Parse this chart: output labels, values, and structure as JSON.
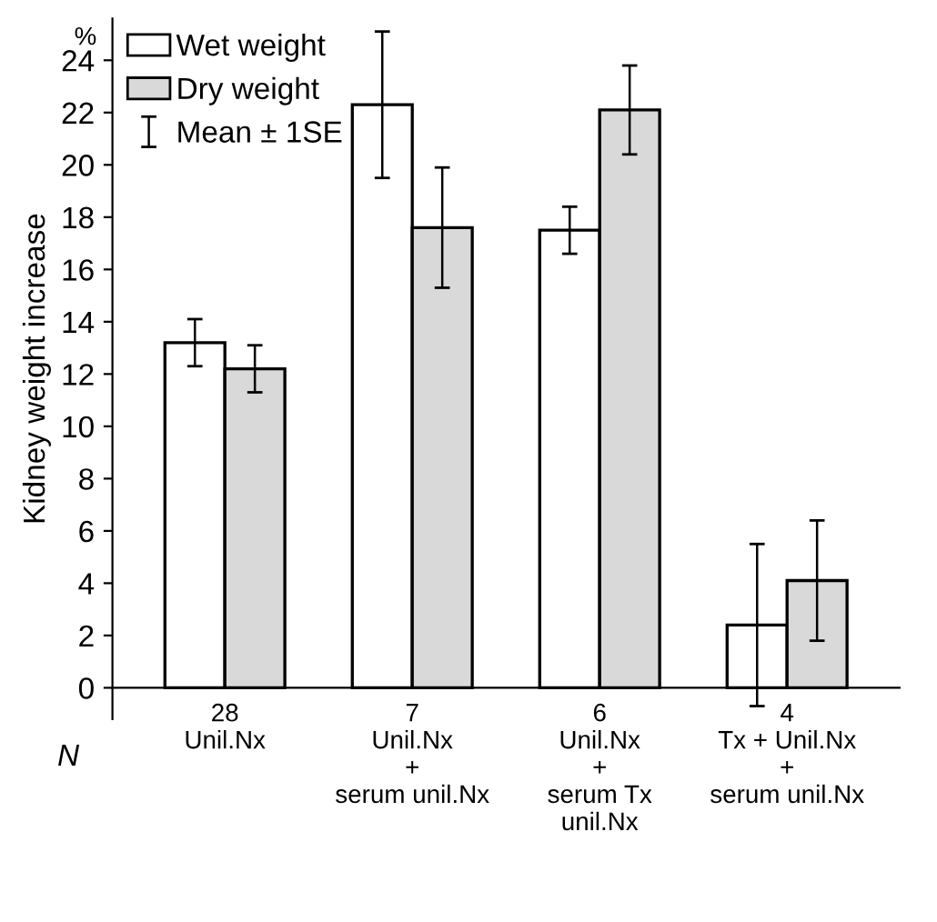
{
  "chart_data": {
    "type": "bar",
    "ylabel": "Kidney weight increase",
    "categories": [
      "28\nUnil.Nx",
      "7\nUnil.Nx\n+\nserum unil.Nx",
      "6\nUnil.Nx\n+\nserum Tx\nunil.Nx",
      "4\nTx + Unil.Nx\n+\nserum unil.Nx"
    ],
    "series": [
      {
        "name": "Wet weight",
        "color": "#ffffff",
        "values": [
          13.2,
          22.3,
          17.5,
          2.4
        ],
        "errors": [
          0.9,
          2.8,
          0.9,
          3.1
        ]
      },
      {
        "name": "Dry weight",
        "color": "#d9d9d9",
        "values": [
          12.2,
          17.6,
          22.1,
          4.1
        ],
        "errors": [
          0.9,
          2.3,
          1.7,
          2.3
        ]
      }
    ],
    "ylim": [
      -1.2,
      25.6
    ],
    "yticks": [
      0,
      2,
      4,
      6,
      8,
      10,
      12,
      14,
      16,
      18,
      20,
      22,
      24
    ],
    "annotations": [
      "%",
      "N",
      "Mean ± 1SE"
    ],
    "legend": "top left",
    "grid": false
  }
}
